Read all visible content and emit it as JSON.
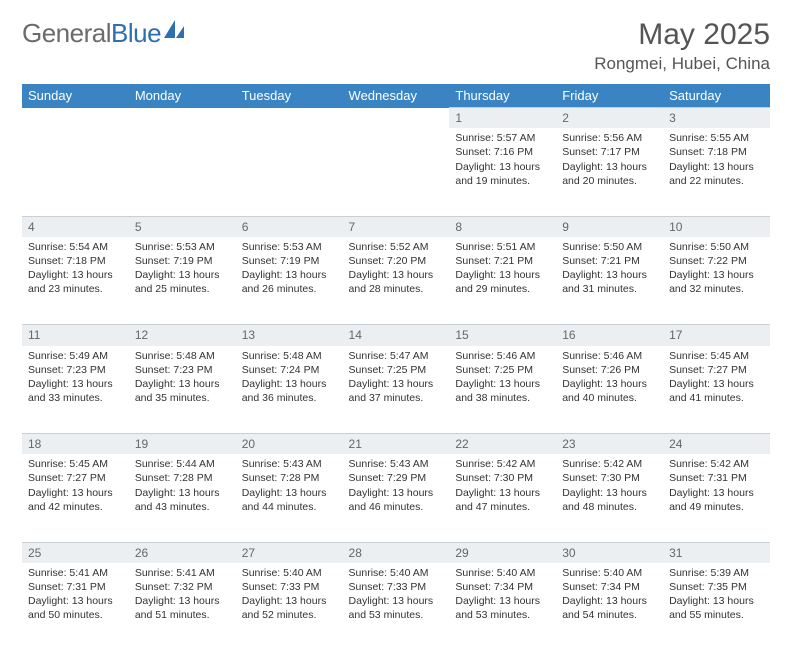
{
  "logo": {
    "word1": "General",
    "word2": "Blue"
  },
  "title": "May 2025",
  "location": "Rongmei, Hubei, China",
  "colors": {
    "header_bg": "#3b84c4",
    "header_fg": "#ffffff",
    "daynum_bg": "#eceff1",
    "daynum_fg": "#666666",
    "text": "#333333",
    "logo_gray": "#6b6b6b",
    "logo_blue": "#2f6fb0",
    "row_border": "#c9cfd4"
  },
  "weekdays": [
    "Sunday",
    "Monday",
    "Tuesday",
    "Wednesday",
    "Thursday",
    "Friday",
    "Saturday"
  ],
  "weeks": [
    [
      null,
      null,
      null,
      null,
      {
        "n": "1",
        "sr": "5:57 AM",
        "ss": "7:16 PM",
        "dl": "13 hours and 19 minutes."
      },
      {
        "n": "2",
        "sr": "5:56 AM",
        "ss": "7:17 PM",
        "dl": "13 hours and 20 minutes."
      },
      {
        "n": "3",
        "sr": "5:55 AM",
        "ss": "7:18 PM",
        "dl": "13 hours and 22 minutes."
      }
    ],
    [
      {
        "n": "4",
        "sr": "5:54 AM",
        "ss": "7:18 PM",
        "dl": "13 hours and 23 minutes."
      },
      {
        "n": "5",
        "sr": "5:53 AM",
        "ss": "7:19 PM",
        "dl": "13 hours and 25 minutes."
      },
      {
        "n": "6",
        "sr": "5:53 AM",
        "ss": "7:19 PM",
        "dl": "13 hours and 26 minutes."
      },
      {
        "n": "7",
        "sr": "5:52 AM",
        "ss": "7:20 PM",
        "dl": "13 hours and 28 minutes."
      },
      {
        "n": "8",
        "sr": "5:51 AM",
        "ss": "7:21 PM",
        "dl": "13 hours and 29 minutes."
      },
      {
        "n": "9",
        "sr": "5:50 AM",
        "ss": "7:21 PM",
        "dl": "13 hours and 31 minutes."
      },
      {
        "n": "10",
        "sr": "5:50 AM",
        "ss": "7:22 PM",
        "dl": "13 hours and 32 minutes."
      }
    ],
    [
      {
        "n": "11",
        "sr": "5:49 AM",
        "ss": "7:23 PM",
        "dl": "13 hours and 33 minutes."
      },
      {
        "n": "12",
        "sr": "5:48 AM",
        "ss": "7:23 PM",
        "dl": "13 hours and 35 minutes."
      },
      {
        "n": "13",
        "sr": "5:48 AM",
        "ss": "7:24 PM",
        "dl": "13 hours and 36 minutes."
      },
      {
        "n": "14",
        "sr": "5:47 AM",
        "ss": "7:25 PM",
        "dl": "13 hours and 37 minutes."
      },
      {
        "n": "15",
        "sr": "5:46 AM",
        "ss": "7:25 PM",
        "dl": "13 hours and 38 minutes."
      },
      {
        "n": "16",
        "sr": "5:46 AM",
        "ss": "7:26 PM",
        "dl": "13 hours and 40 minutes."
      },
      {
        "n": "17",
        "sr": "5:45 AM",
        "ss": "7:27 PM",
        "dl": "13 hours and 41 minutes."
      }
    ],
    [
      {
        "n": "18",
        "sr": "5:45 AM",
        "ss": "7:27 PM",
        "dl": "13 hours and 42 minutes."
      },
      {
        "n": "19",
        "sr": "5:44 AM",
        "ss": "7:28 PM",
        "dl": "13 hours and 43 minutes."
      },
      {
        "n": "20",
        "sr": "5:43 AM",
        "ss": "7:28 PM",
        "dl": "13 hours and 44 minutes."
      },
      {
        "n": "21",
        "sr": "5:43 AM",
        "ss": "7:29 PM",
        "dl": "13 hours and 46 minutes."
      },
      {
        "n": "22",
        "sr": "5:42 AM",
        "ss": "7:30 PM",
        "dl": "13 hours and 47 minutes."
      },
      {
        "n": "23",
        "sr": "5:42 AM",
        "ss": "7:30 PM",
        "dl": "13 hours and 48 minutes."
      },
      {
        "n": "24",
        "sr": "5:42 AM",
        "ss": "7:31 PM",
        "dl": "13 hours and 49 minutes."
      }
    ],
    [
      {
        "n": "25",
        "sr": "5:41 AM",
        "ss": "7:31 PM",
        "dl": "13 hours and 50 minutes."
      },
      {
        "n": "26",
        "sr": "5:41 AM",
        "ss": "7:32 PM",
        "dl": "13 hours and 51 minutes."
      },
      {
        "n": "27",
        "sr": "5:40 AM",
        "ss": "7:33 PM",
        "dl": "13 hours and 52 minutes."
      },
      {
        "n": "28",
        "sr": "5:40 AM",
        "ss": "7:33 PM",
        "dl": "13 hours and 53 minutes."
      },
      {
        "n": "29",
        "sr": "5:40 AM",
        "ss": "7:34 PM",
        "dl": "13 hours and 53 minutes."
      },
      {
        "n": "30",
        "sr": "5:40 AM",
        "ss": "7:34 PM",
        "dl": "13 hours and 54 minutes."
      },
      {
        "n": "31",
        "sr": "5:39 AM",
        "ss": "7:35 PM",
        "dl": "13 hours and 55 minutes."
      }
    ]
  ],
  "labels": {
    "sunrise": "Sunrise:",
    "sunset": "Sunset:",
    "daylight": "Daylight:"
  }
}
